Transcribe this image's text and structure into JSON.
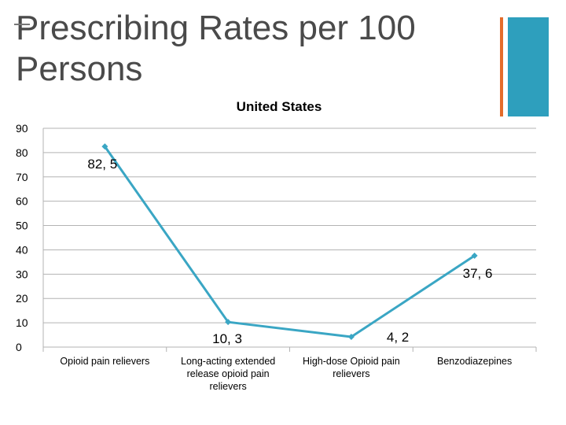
{
  "slide": {
    "title": "Prescribing Rates per 100 Persons"
  },
  "colors": {
    "line": "#3aa6c4",
    "accent_orange": "#e46c2a",
    "accent_teal": "#2e9fbd",
    "grid": "#b3b3b3"
  },
  "chart_data": {
    "type": "line",
    "title": "United States",
    "categories": [
      [
        "Opioid pain relievers"
      ],
      [
        "Long-acting extended",
        "release opioid pain",
        "relievers"
      ],
      [
        "High-dose Opioid pain",
        "relievers"
      ],
      [
        "Benzodiazepines"
      ]
    ],
    "series": [
      {
        "values": [
          82.5,
          10.3,
          4.2,
          37.6
        ]
      }
    ],
    "data_labels": [
      "82, 5",
      "10, 3",
      "4, 2",
      "37, 6"
    ],
    "yticks": [
      0,
      10,
      20,
      30,
      40,
      50,
      60,
      70,
      80,
      90
    ],
    "ylim": [
      0,
      90
    ],
    "grid": true
  }
}
